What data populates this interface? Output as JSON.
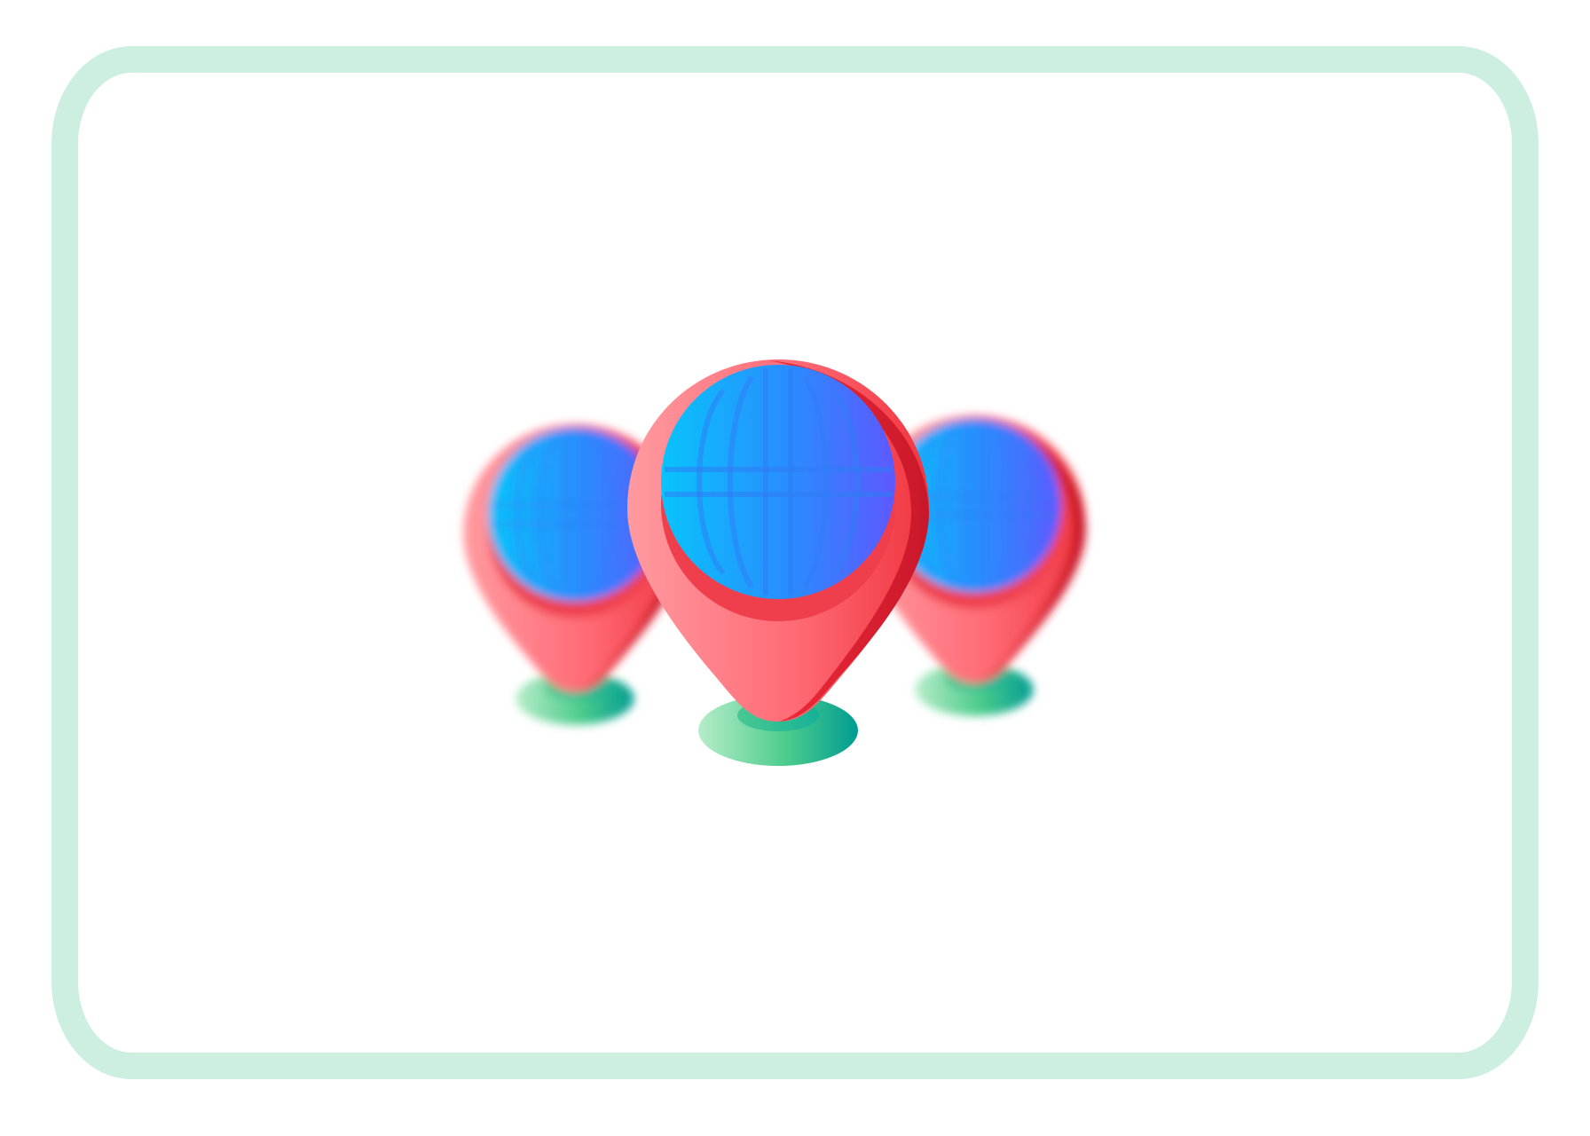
{
  "scene": {
    "icon_names": [
      "location-pin-globe-icon",
      "location-pin-globe-icon",
      "location-pin-globe-icon"
    ],
    "colors": {
      "frame": "#cdefe0",
      "background": "#ffffff",
      "pin_light": "#ff8f95",
      "pin_dark": "#d91a2a",
      "globe_light": "#0ac0f9",
      "globe_dark": "#5a5cff",
      "base_light": "#a8e8c2",
      "base_dark": "#00a89a"
    }
  }
}
